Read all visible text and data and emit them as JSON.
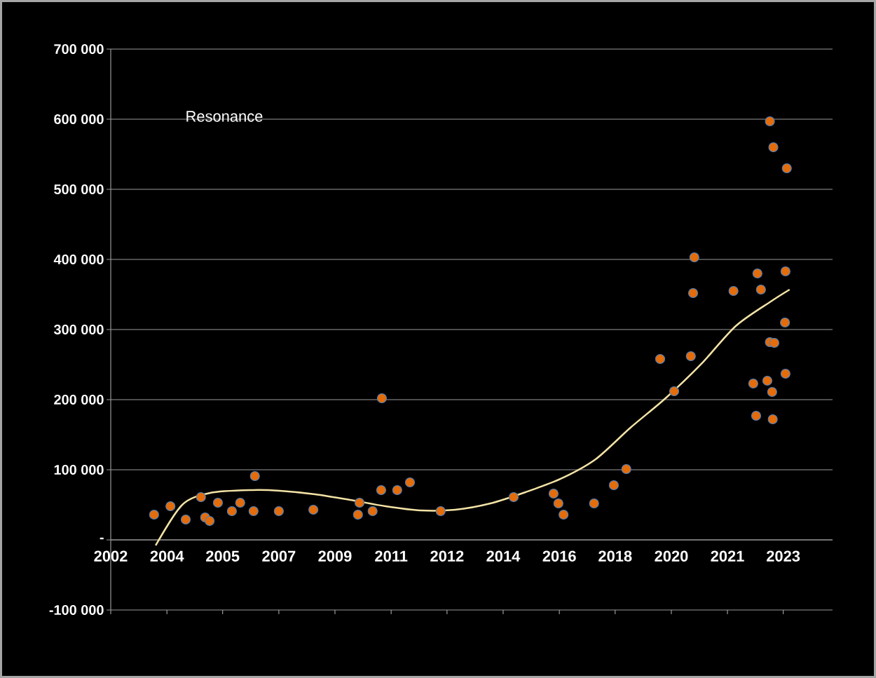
{
  "chart_data": {
    "type": "scatter",
    "annotations": [
      "Resonance"
    ],
    "xlim": [
      "2002-06-14",
      "2025-01-27"
    ],
    "ylim": [
      -100000,
      700000
    ],
    "xticks": [
      {
        "value": "2002-06-14",
        "label": "2002"
      },
      {
        "value": "2004-03-18",
        "label": "2004"
      },
      {
        "value": "2005-12-16",
        "label": "2005"
      },
      {
        "value": "2007-09-20",
        "label": "2007"
      },
      {
        "value": "2009-06-24",
        "label": "2009"
      },
      {
        "value": "2011-03-29",
        "label": "2011"
      },
      {
        "value": "2012-12-27",
        "label": "2012"
      },
      {
        "value": "2014-10-01",
        "label": "2014"
      },
      {
        "value": "2016-07-05",
        "label": "2016"
      },
      {
        "value": "2018-04-05",
        "label": "2018"
      },
      {
        "value": "2020-01-08",
        "label": "2020"
      },
      {
        "value": "2021-10-12",
        "label": "2021"
      },
      {
        "value": "2023-07-12",
        "label": "2023"
      }
    ],
    "yticks": [
      {
        "value": -100000,
        "label": "-100 000"
      },
      {
        "value": 0,
        "label": "-"
      },
      {
        "value": 100000,
        "label": "100 000"
      },
      {
        "value": 200000,
        "label": "200 000"
      },
      {
        "value": 300000,
        "label": "300 000"
      },
      {
        "value": 400000,
        "label": "400 000"
      },
      {
        "value": 500000,
        "label": "500 000"
      },
      {
        "value": 600000,
        "label": "600 000"
      },
      {
        "value": 700000,
        "label": "700 000"
      }
    ],
    "grid": "y",
    "marker": "circle",
    "series": [
      {
        "color": "#e46c0a",
        "x": [
          "2003-10-23",
          "2004-04-27",
          "2004-10-19",
          "2005-04-12",
          "2005-05-30",
          "2005-07-20",
          "2005-10-23",
          "2006-04-01",
          "2006-07-05",
          "2006-12-05",
          "2006-12-20",
          "2007-09-20",
          "2008-10-19",
          "2010-03-14",
          "2010-04-01",
          "2010-08-29",
          "2010-12-05",
          "2010-12-13",
          "2011-06-06",
          "2011-10-30",
          "2012-10-15",
          "2015-01-29",
          "2016-04-30",
          "2016-06-24",
          "2016-08-22",
          "2017-08-07",
          "2018-03-21",
          "2018-08-11",
          "2019-09-02",
          "2020-02-09",
          "2020-08-18",
          "2020-09-13",
          "2020-09-27",
          "2021-12-20",
          "2022-08-03",
          "2022-09-05",
          "2022-09-20",
          "2022-10-30",
          "2023-01-11",
          "2023-02-09",
          "2023-02-09",
          "2023-03-07",
          "2023-03-14",
          "2023-03-21",
          "2023-04-01",
          "2023-08-01",
          "2023-08-07",
          "2023-08-07",
          "2023-08-22"
        ],
        "values": [
          36000,
          48000,
          29000,
          61000,
          32000,
          27000,
          53000,
          41000,
          53000,
          41000,
          91000,
          41000,
          43000,
          36000,
          53000,
          41000,
          71000,
          202000,
          71000,
          82000,
          41000,
          61000,
          66000,
          52000,
          36000,
          52000,
          78000,
          101000,
          258000,
          212000,
          262000,
          352000,
          403000,
          355000,
          223000,
          177000,
          380000,
          357000,
          227000,
          597000,
          282000,
          211000,
          172000,
          560000,
          281000,
          310000,
          383000,
          237000,
          530000
        ]
      },
      {
        "type": "line",
        "color": "#f3e3a6",
        "marker": "none",
        "x": [
          "2003-11-10",
          "2004-09-09",
          "2005-07-27",
          "2006-11-21",
          "2007-10-04",
          "2008-11-09",
          "2009-12-16",
          "2011-01-22",
          "2012-02-27",
          "2013-04-01",
          "2014-05-08",
          "2015-06-13",
          "2016-07-19",
          "2017-08-25",
          "2018-09-27",
          "2019-11-03",
          "2020-12-09",
          "2022-01-15",
          "2023-02-20",
          "2023-09-23"
        ],
        "values": [
          -8000,
          50000,
          67000,
          71000,
          70000,
          65000,
          57000,
          48000,
          42000,
          43000,
          52000,
          68000,
          87000,
          115000,
          160000,
          202000,
          250000,
          305000,
          340000,
          357000
        ]
      }
    ]
  }
}
